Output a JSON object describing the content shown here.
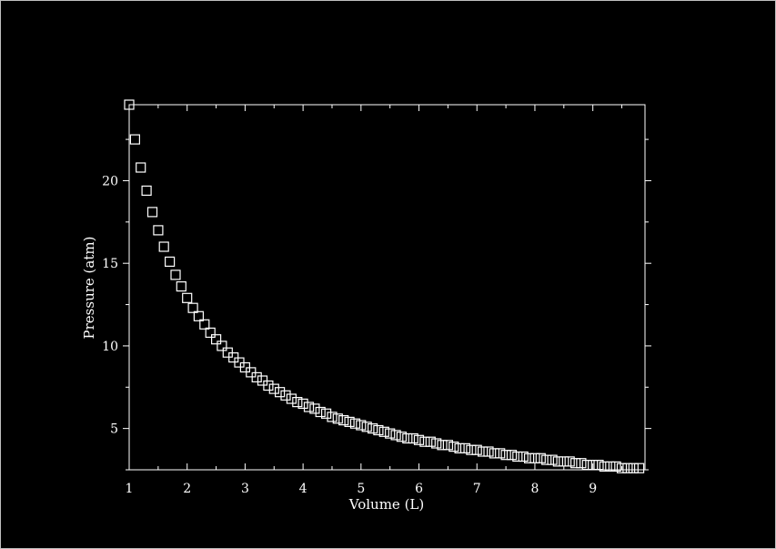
{
  "chart_data": {
    "type": "scatter",
    "title": "",
    "xlabel": "Volume (L)",
    "ylabel": "Pressure (atm)",
    "xlim": [
      1,
      9.9
    ],
    "ylim": [
      2.5,
      24.6
    ],
    "x_ticks": [
      1,
      2,
      3,
      4,
      5,
      6,
      7,
      8,
      9
    ],
    "y_ticks": [
      5,
      10,
      15,
      20
    ],
    "grid": false,
    "legend": "none",
    "marker": "open-square",
    "colors": {
      "background": "#000000",
      "foreground": "#ffffff"
    },
    "series": [
      {
        "x": [
          1.0,
          1.1,
          1.2,
          1.3,
          1.4,
          1.5,
          1.6,
          1.7,
          1.8,
          1.9,
          2.0,
          2.1,
          2.2,
          2.3,
          2.4,
          2.5,
          2.6,
          2.7,
          2.8,
          2.9,
          3.0,
          3.1,
          3.2,
          3.3,
          3.4,
          3.5,
          3.6,
          3.7,
          3.8,
          3.9,
          4.0,
          4.1,
          4.2,
          4.3,
          4.4,
          4.5,
          4.6,
          4.7,
          4.8,
          4.9,
          5.0,
          5.1,
          5.2,
          5.3,
          5.4,
          5.5,
          5.6,
          5.7,
          5.8,
          5.9,
          6.0,
          6.1,
          6.2,
          6.3,
          6.4,
          6.5,
          6.6,
          6.7,
          6.8,
          6.9,
          7.0,
          7.1,
          7.2,
          7.3,
          7.4,
          7.5,
          7.6,
          7.7,
          7.8,
          7.9,
          8.0,
          8.1,
          8.2,
          8.3,
          8.4,
          8.5,
          8.6,
          8.7,
          8.8,
          8.9,
          9.0,
          9.1,
          9.2,
          9.3,
          9.4,
          9.5,
          9.6,
          9.7,
          9.8
        ],
        "y": [
          24.6,
          22.5,
          20.8,
          19.4,
          18.1,
          17.0,
          16.0,
          15.1,
          14.3,
          13.6,
          12.9,
          12.3,
          11.8,
          11.3,
          10.8,
          10.4,
          10.0,
          9.6,
          9.3,
          9.0,
          8.7,
          8.4,
          8.1,
          7.9,
          7.6,
          7.4,
          7.2,
          7.0,
          6.8,
          6.6,
          6.5,
          6.3,
          6.2,
          6.0,
          5.9,
          5.7,
          5.6,
          5.5,
          5.4,
          5.3,
          5.2,
          5.1,
          5.0,
          4.9,
          4.8,
          4.7,
          4.6,
          4.5,
          4.4,
          4.4,
          4.3,
          4.2,
          4.2,
          4.1,
          4.0,
          4.0,
          3.9,
          3.8,
          3.8,
          3.7,
          3.7,
          3.6,
          3.6,
          3.5,
          3.5,
          3.4,
          3.4,
          3.3,
          3.3,
          3.2,
          3.2,
          3.2,
          3.1,
          3.1,
          3.0,
          3.0,
          3.0,
          2.9,
          2.9,
          2.8,
          2.8,
          2.8,
          2.7,
          2.7,
          2.7,
          2.6,
          2.6,
          2.6,
          2.6
        ]
      }
    ]
  }
}
